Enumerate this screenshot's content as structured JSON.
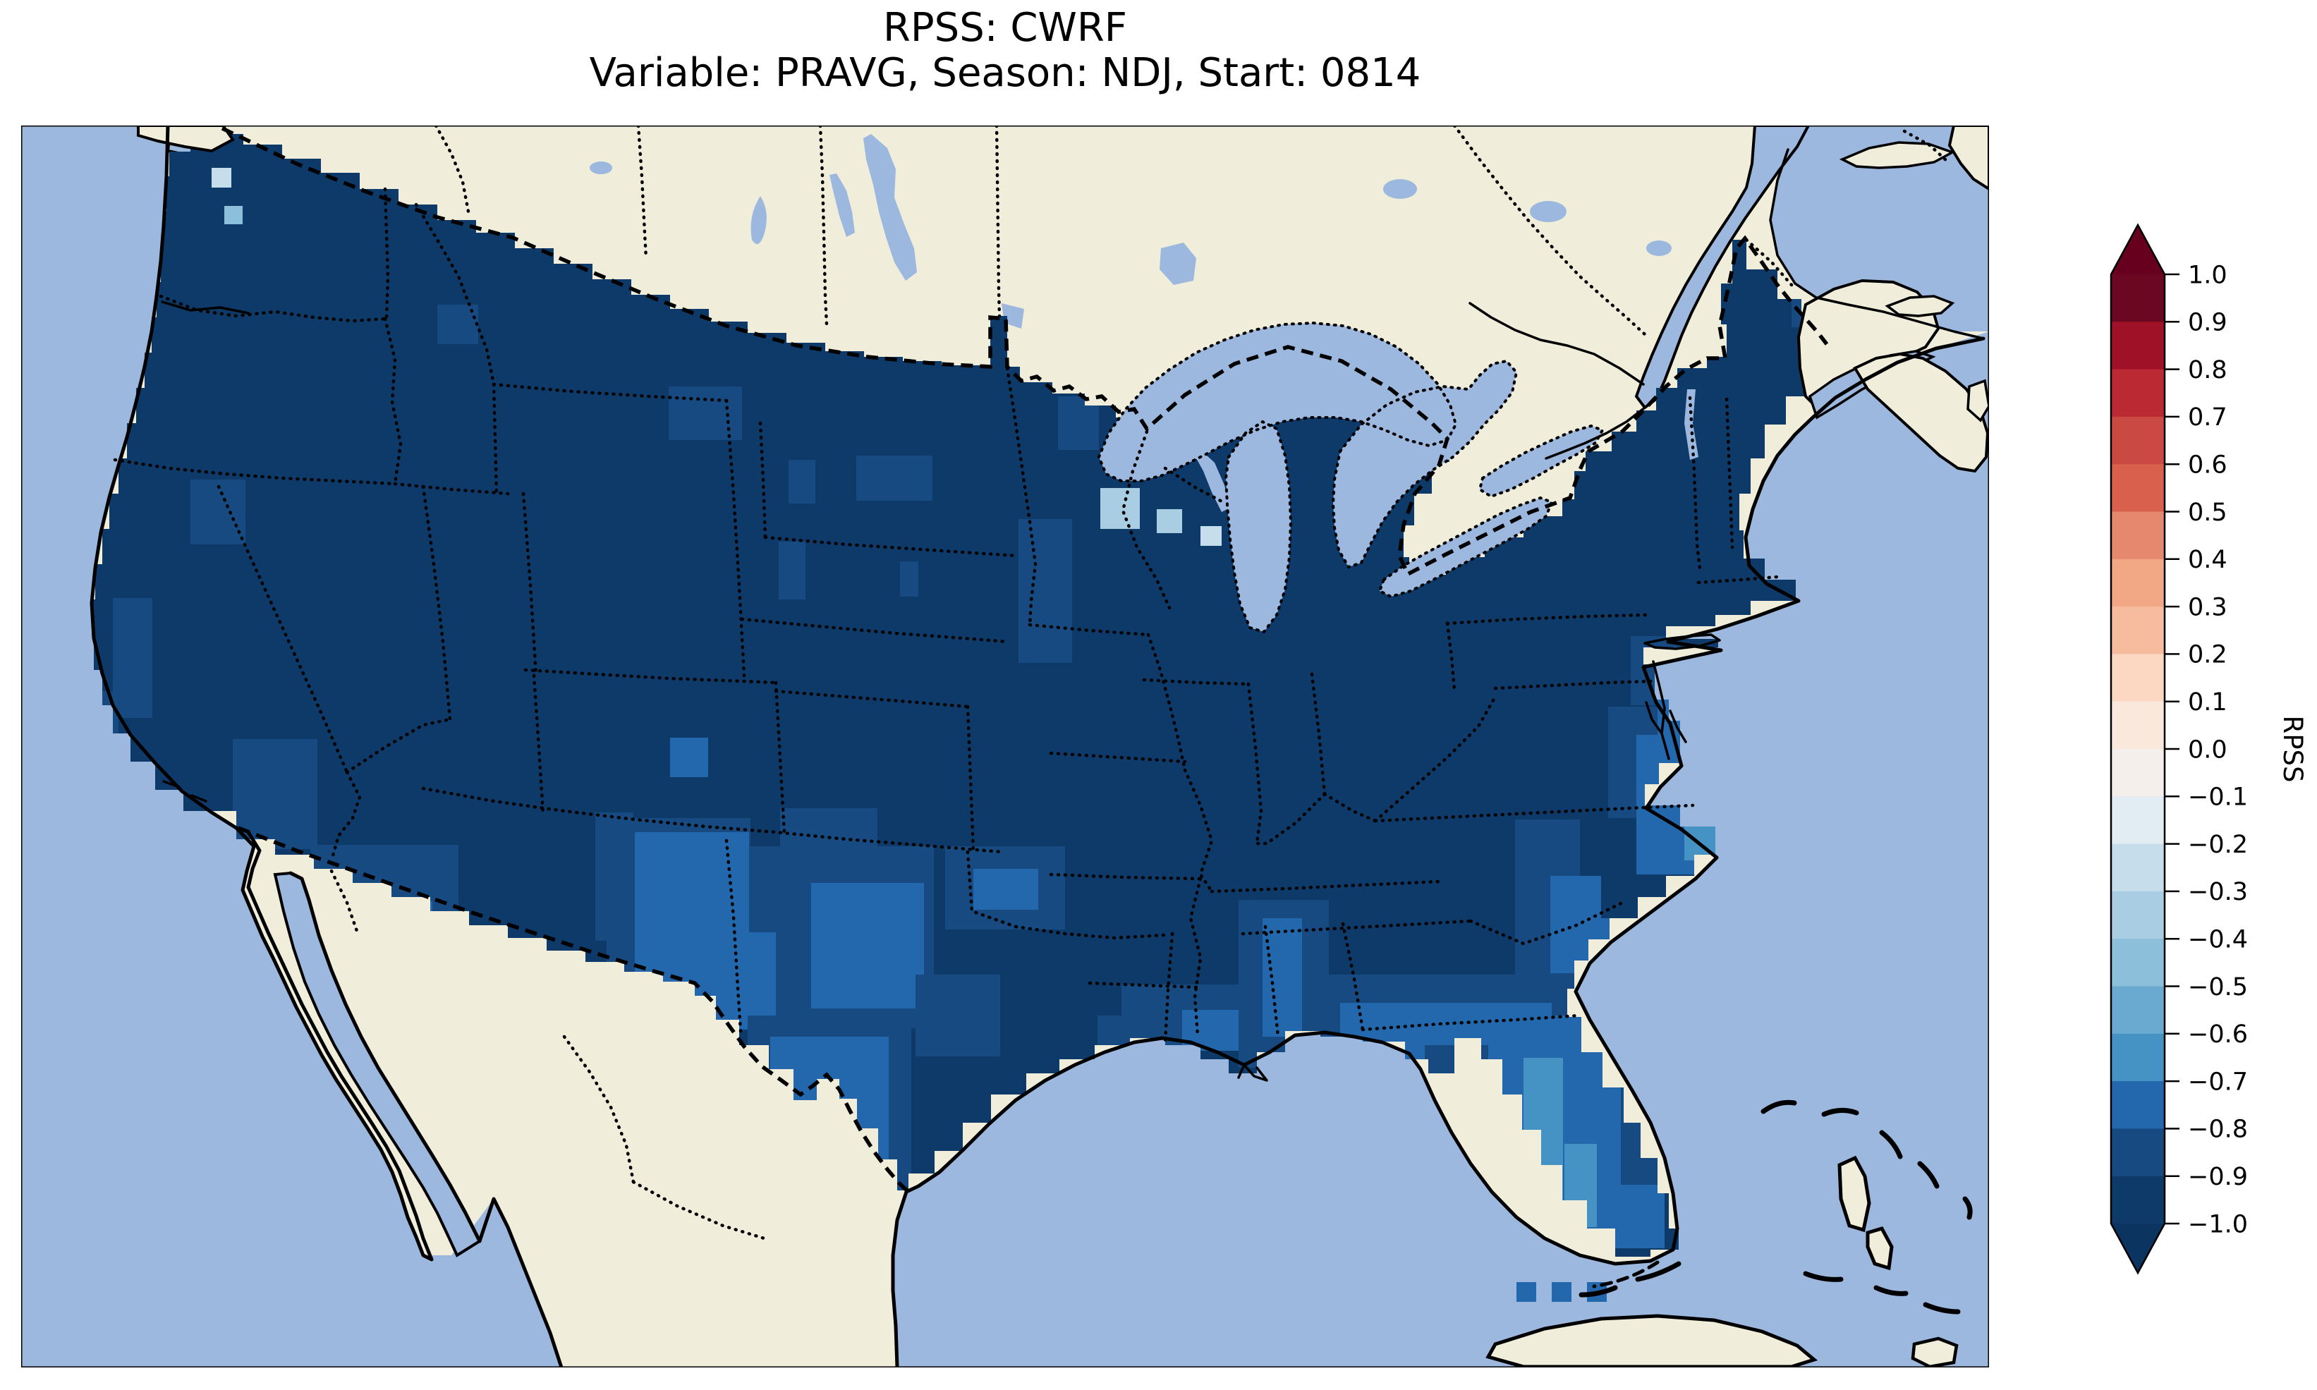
{
  "title": {
    "line1": "RPSS: CWRF",
    "line2": "Variable: PRAVG, Season: NDJ, Start: 0814"
  },
  "colorbar": {
    "label": "RPSS",
    "tick_labels": [
      "1.0",
      "0.9",
      "0.8",
      "0.7",
      "0.6",
      "0.5",
      "0.4",
      "0.3",
      "0.2",
      "0.1",
      "0.0",
      "−0.1",
      "−0.2",
      "−0.3",
      "−0.4",
      "−0.5",
      "−0.6",
      "−0.7",
      "−0.8",
      "−0.9",
      "−1.0"
    ],
    "band_colors": [
      "#6b0721",
      "#9e1127",
      "#bb2a33",
      "#ca4942",
      "#d8604c",
      "#e5886e",
      "#f2a785",
      "#f7bb9e",
      "#fcd7c2",
      "#fbe8dc",
      "#f4efeb",
      "#e2ecf3",
      "#c6ddec",
      "#a9cde2",
      "#8cbfda",
      "#6aaad0",
      "#4593c5",
      "#2367ad",
      "#164a80",
      "#0e3a69"
    ],
    "over_color": "#67001f",
    "under_color": "#0b3461"
  },
  "map_colors": {
    "ocean": "#9db8df",
    "land": "#f0eddb",
    "coastline": "#000000",
    "dominant_field": "#0e3a69"
  },
  "chart_data": {
    "type": "heatmap",
    "title": "RPSS: CWRF",
    "subtitle": "Variable: PRAVG, Season: NDJ, Start: 0814",
    "metric": "RPSS",
    "model": "CWRF",
    "variable": "PRAVG",
    "season": "NDJ",
    "start": "0814",
    "colorbar_range": [
      -1.0,
      1.0
    ],
    "colorbar_step": 0.1,
    "colormap": "RdBu (discrete, 0.1 bands, arrows at both ends)",
    "base_value": -0.95,
    "regions_summary": [
      {
        "region": "Most of CONUS",
        "rpss": -0.95
      },
      {
        "region": "Southwest AZ/NM/W-TX",
        "rpss": -0.75
      },
      {
        "region": "Big Bend Texas",
        "rpss": -0.65
      },
      {
        "region": "Florida peninsula",
        "rpss": -0.7
      },
      {
        "region": "Carolinas / Georgia coast",
        "rpss": -0.8
      },
      {
        "region": "Gulf coast LA/MS/AL",
        "rpss": -0.8
      },
      {
        "region": "Great Lakes shorelines",
        "rpss": -0.3
      },
      {
        "region": "Scattered Rockies / Plains cells",
        "rpss": -0.85
      }
    ],
    "patches": [
      [
        948,
        548,
        104,
        76,
        -0.85
      ],
      [
        1118,
        652,
        38,
        62,
        -0.85
      ],
      [
        1104,
        768,
        38,
        82,
        -0.85
      ],
      [
        1276,
        796,
        26,
        50,
        -0.85
      ],
      [
        1214,
        646,
        108,
        64,
        -0.85
      ],
      [
        1444,
        736,
        76,
        204,
        -0.85
      ],
      [
        1500,
        562,
        58,
        76,
        -0.85
      ],
      [
        950,
        1046,
        54,
        56,
        -0.75
      ],
      [
        565,
        1212,
        62,
        132,
        -0.85
      ],
      [
        844,
        1152,
        54,
        182,
        -0.85
      ],
      [
        1106,
        1146,
        138,
        278,
        -0.85
      ],
      [
        1106,
        1382,
        46,
        40,
        -0.75
      ],
      [
        160,
        848,
        56,
        170,
        -0.85
      ],
      [
        128,
        980,
        40,
        90,
        -0.85
      ],
      [
        270,
        680,
        78,
        92,
        -0.85
      ],
      [
        330,
        1048,
        120,
        156,
        -0.85
      ],
      [
        440,
        1198,
        210,
        226,
        -0.85
      ],
      [
        505,
        1278,
        108,
        126,
        -0.75
      ],
      [
        860,
        1160,
        204,
        300,
        -0.85
      ],
      [
        1062,
        1200,
        262,
        258,
        -0.85
      ],
      [
        900,
        1180,
        162,
        218,
        -0.75
      ],
      [
        1150,
        1252,
        160,
        178,
        -0.75
      ],
      [
        982,
        1322,
        118,
        138,
        -0.75
      ],
      [
        914,
        1420,
        96,
        144,
        -0.65
      ],
      [
        938,
        1562,
        62,
        98,
        -0.65
      ],
      [
        1060,
        1440,
        232,
        276,
        -0.85
      ],
      [
        1092,
        1470,
        168,
        218,
        -0.75
      ],
      [
        1340,
        1200,
        170,
        118,
        -0.85
      ],
      [
        1380,
        1232,
        92,
        58,
        -0.75
      ],
      [
        1298,
        1382,
        120,
        116,
        -0.85
      ],
      [
        1590,
        1396,
        318,
        92,
        -0.85
      ],
      [
        1676,
        1432,
        88,
        58,
        -0.75
      ],
      [
        1556,
        1440,
        78,
        58,
        -0.85
      ],
      [
        1756,
        1276,
        128,
        238,
        -0.85
      ],
      [
        1790,
        1302,
        56,
        168,
        -0.75
      ],
      [
        1846,
        1382,
        400,
        116,
        -0.85
      ],
      [
        1900,
        1422,
        300,
        88,
        -0.75
      ],
      [
        2148,
        1162,
        92,
        258,
        -0.85
      ],
      [
        2198,
        1242,
        72,
        138,
        -0.75
      ],
      [
        2240,
        1302,
        62,
        118,
        -0.75
      ],
      [
        2280,
        1002,
        92,
        158,
        -0.85
      ],
      [
        2320,
        1042,
        108,
        198,
        -0.75
      ],
      [
        2388,
        1132,
        46,
        88,
        -0.65
      ],
      [
        2312,
        902,
        70,
        98,
        -0.85
      ],
      [
        2350,
        932,
        58,
        118,
        -0.75
      ],
      [
        2080,
        1440,
        280,
        330,
        -0.75
      ],
      [
        2160,
        1500,
        56,
        208,
        -0.65
      ],
      [
        2218,
        1622,
        46,
        118,
        -0.65
      ],
      [
        2298,
        1462,
        62,
        218,
        -0.85
      ],
      [
        2020,
        1482,
        90,
        88,
        -0.85
      ],
      [
        1560,
        692,
        56,
        58,
        -0.35
      ],
      [
        1640,
        722,
        36,
        34,
        -0.35
      ],
      [
        1702,
        746,
        30,
        28,
        -0.25
      ],
      [
        2540,
        402,
        42,
        62,
        -0.85
      ],
      [
        620,
        432,
        58,
        56,
        -0.85
      ]
    ],
    "island_cells": [
      [
        2150,
        1818,
        28,
        28,
        -0.75
      ],
      [
        2200,
        1818,
        28,
        28,
        -0.75
      ],
      [
        2250,
        1818,
        28,
        28,
        -0.75
      ],
      [
        300,
        238,
        28,
        28,
        -0.25
      ],
      [
        318,
        292,
        26,
        26,
        -0.45
      ]
    ]
  }
}
